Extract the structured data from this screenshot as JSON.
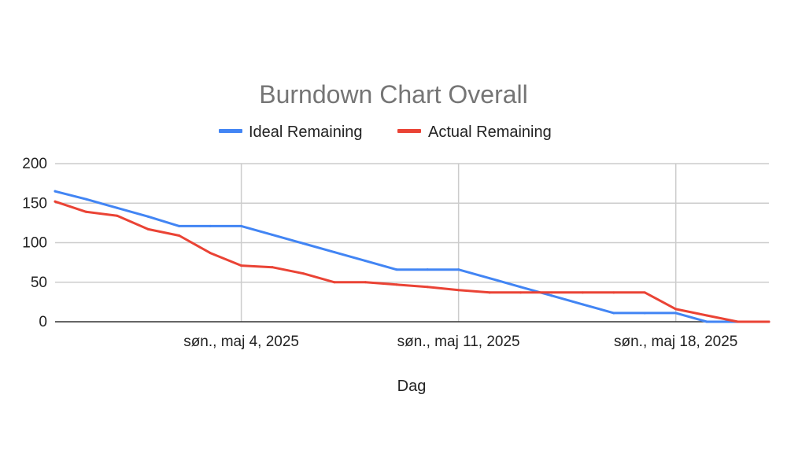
{
  "chart_data": {
    "type": "line",
    "title": "Burndown Chart Overall",
    "xlabel": "Dag",
    "ylabel": "",
    "ylim": [
      0,
      200
    ],
    "y_ticks": [
      0,
      50,
      100,
      150,
      200
    ],
    "xlim": [
      "2025-04-28",
      "2025-05-21"
    ],
    "x_ticks": [
      {
        "date": "2025-05-04",
        "label": "søn., maj 4, 2025"
      },
      {
        "date": "2025-05-11",
        "label": "søn., maj 11, 2025"
      },
      {
        "date": "2025-05-18",
        "label": "søn., maj 18, 2025"
      }
    ],
    "grid": true,
    "legend_position": "top",
    "x": [
      "2025-04-28",
      "2025-04-29",
      "2025-04-30",
      "2025-05-01",
      "2025-05-02",
      "2025-05-03",
      "2025-05-04",
      "2025-05-05",
      "2025-05-06",
      "2025-05-07",
      "2025-05-08",
      "2025-05-09",
      "2025-05-10",
      "2025-05-11",
      "2025-05-12",
      "2025-05-13",
      "2025-05-14",
      "2025-05-15",
      "2025-05-16",
      "2025-05-17",
      "2025-05-18",
      "2025-05-19",
      "2025-05-20",
      "2025-05-21"
    ],
    "series": [
      {
        "name": "Ideal Remaining",
        "color": "#4285f4",
        "values": [
          165,
          155,
          144,
          133,
          121,
          121,
          121,
          110,
          99,
          88,
          77,
          66,
          66,
          66,
          55,
          44,
          33,
          22,
          11,
          11,
          11,
          0,
          0,
          0
        ]
      },
      {
        "name": "Actual Remaining",
        "color": "#ea4335",
        "values": [
          152,
          139,
          134,
          117,
          109,
          87,
          71,
          69,
          61,
          50,
          50,
          47,
          44,
          40,
          37,
          37,
          37,
          37,
          37,
          37,
          16,
          8,
          0,
          0
        ]
      }
    ]
  }
}
